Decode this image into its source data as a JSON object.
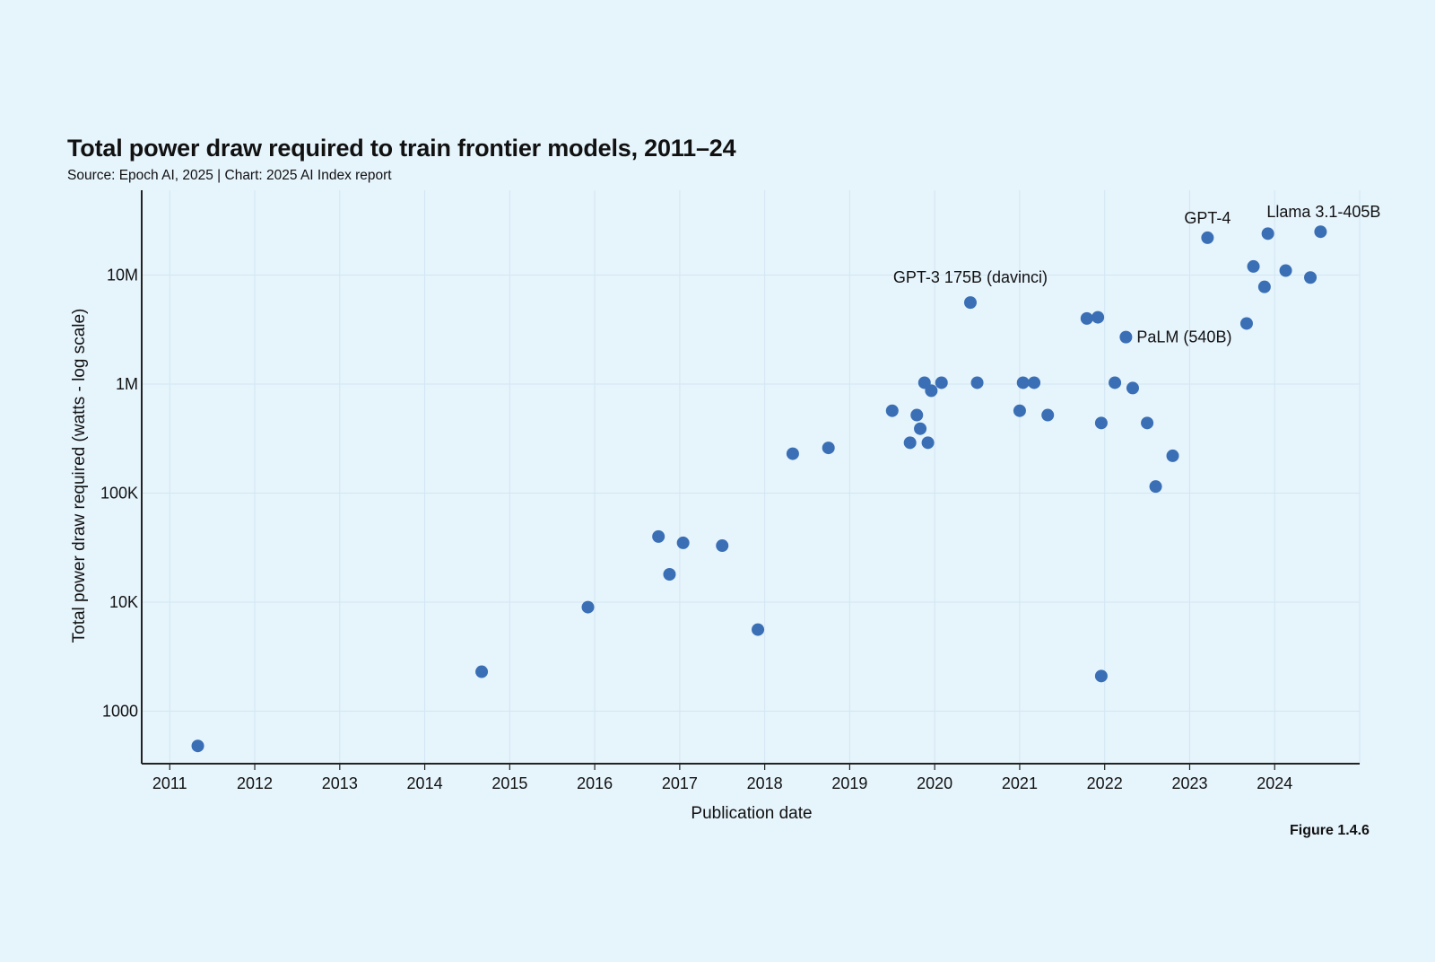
{
  "chart_data": {
    "type": "scatter",
    "title": "Total power draw required to train frontier models, 2011–24",
    "subtitle": "Source: Epoch AI, 2025 | Chart: 2025 AI Index report",
    "figure_label": "Figure 1.4.6",
    "xlabel": "Publication date",
    "ylabel": "Total power draw required (watts - log scale)",
    "y_scale": "log",
    "grid": true,
    "marker_color": "#3a6fb5",
    "xlim": [
      2010.67,
      2025.0
    ],
    "ylim": [
      330,
      60000000
    ],
    "x_ticks": [
      2011,
      2012,
      2013,
      2014,
      2015,
      2016,
      2017,
      2018,
      2019,
      2020,
      2021,
      2022,
      2023,
      2024
    ],
    "x_tick_labels": [
      "2011",
      "2012",
      "2013",
      "2014",
      "2015",
      "2016",
      "2017",
      "2018",
      "2019",
      "2020",
      "2021",
      "2022",
      "2023",
      "2024"
    ],
    "y_ticks": [
      1000,
      10000,
      100000,
      1000000,
      10000000
    ],
    "y_tick_labels": [
      "1000",
      "10K",
      "100K",
      "1M",
      "10M"
    ],
    "points": [
      {
        "x": 2011.33,
        "y": 480
      },
      {
        "x": 2014.67,
        "y": 2300
      },
      {
        "x": 2015.92,
        "y": 9000
      },
      {
        "x": 2016.75,
        "y": 40000
      },
      {
        "x": 2016.88,
        "y": 18000
      },
      {
        "x": 2017.04,
        "y": 35000
      },
      {
        "x": 2017.5,
        "y": 33000
      },
      {
        "x": 2017.92,
        "y": 5600
      },
      {
        "x": 2018.33,
        "y": 230000
      },
      {
        "x": 2018.75,
        "y": 260000
      },
      {
        "x": 2019.5,
        "y": 570000
      },
      {
        "x": 2019.71,
        "y": 290000
      },
      {
        "x": 2019.79,
        "y": 520000
      },
      {
        "x": 2019.83,
        "y": 390000
      },
      {
        "x": 2019.88,
        "y": 1030000
      },
      {
        "x": 2019.92,
        "y": 290000
      },
      {
        "x": 2019.96,
        "y": 870000
      },
      {
        "x": 2020.08,
        "y": 1030000
      },
      {
        "x": 2020.42,
        "y": 5600000,
        "label": "GPT-3 175B (davinci)"
      },
      {
        "x": 2020.5,
        "y": 1030000
      },
      {
        "x": 2021.0,
        "y": 570000
      },
      {
        "x": 2021.04,
        "y": 1030000
      },
      {
        "x": 2021.17,
        "y": 1030000
      },
      {
        "x": 2021.33,
        "y": 520000
      },
      {
        "x": 2021.79,
        "y": 4000000
      },
      {
        "x": 2021.92,
        "y": 4100000
      },
      {
        "x": 2021.96,
        "y": 440000
      },
      {
        "x": 2021.96,
        "y": 2100
      },
      {
        "x": 2022.12,
        "y": 1030000
      },
      {
        "x": 2022.25,
        "y": 2700000,
        "label": "PaLM (540B)"
      },
      {
        "x": 2022.33,
        "y": 920000
      },
      {
        "x": 2022.5,
        "y": 440000
      },
      {
        "x": 2022.6,
        "y": 115000
      },
      {
        "x": 2022.8,
        "y": 220000
      },
      {
        "x": 2023.21,
        "y": 22000000,
        "label": "GPT-4"
      },
      {
        "x": 2023.67,
        "y": 3600000
      },
      {
        "x": 2023.75,
        "y": 12000000
      },
      {
        "x": 2023.88,
        "y": 7800000
      },
      {
        "x": 2023.92,
        "y": 24000000
      },
      {
        "x": 2024.13,
        "y": 11000000
      },
      {
        "x": 2024.42,
        "y": 9500000
      },
      {
        "x": 2024.54,
        "y": 25000000,
        "label": "Llama 3.1-405B"
      }
    ]
  }
}
